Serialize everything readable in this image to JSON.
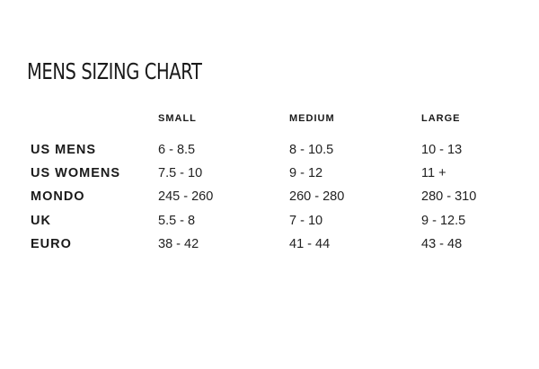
{
  "title": "MENS SIZING CHART",
  "columns": [
    "SMALL",
    "MEDIUM",
    "LARGE"
  ],
  "rows": [
    {
      "label": "US MENS",
      "small": "6 - 8.5",
      "medium": "8 - 10.5",
      "large": "10 - 13"
    },
    {
      "label": "US WOMENS",
      "small": "7.5 - 10",
      "medium": "9 - 12",
      "large": "11 +"
    },
    {
      "label": "MONDO",
      "small": "245 - 260",
      "medium": "260 - 280",
      "large": "280 - 310"
    },
    {
      "label": "UK",
      "small": "5.5 - 8",
      "medium": "7 - 10",
      "large": "9 - 12.5"
    },
    {
      "label": "EURO",
      "small": "38 - 42",
      "medium": "41 - 44",
      "large": "43 - 48"
    }
  ]
}
